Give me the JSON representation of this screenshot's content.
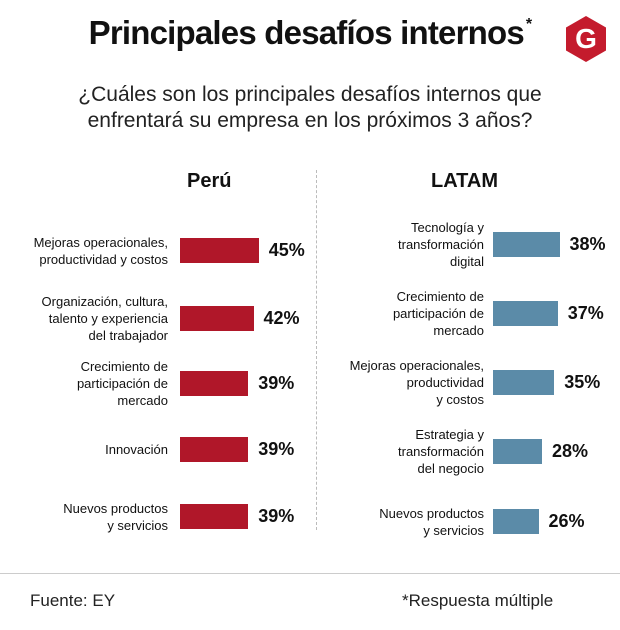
{
  "title": "Principales desafíos internos",
  "title_mark": "*",
  "logo_letter": "G",
  "subtitle_line1": "¿Cuáles son los principales desafíos internos que",
  "subtitle_line2": "enfrentará su empresa en los próximos 3 años?",
  "colors": {
    "peru": "#b01729",
    "latam": "#5b8ba8",
    "logo": "#c41b2d"
  },
  "chart_data": [
    {
      "type": "bar",
      "orientation": "horizontal",
      "title": "Perú",
      "unit": "%",
      "categories": [
        "Mejoras operacionales,\nproductividad y costos",
        "Organización, cultura,\ntalento y experiencia\ndel trabajador",
        "Crecimiento de\nparticipación de\nmercado",
        "Innovación",
        "Nuevos productos\ny servicios"
      ],
      "values": [
        45,
        42,
        39,
        39,
        39
      ],
      "labels": [
        "45%",
        "42%",
        "39%",
        "39%",
        "39%"
      ]
    },
    {
      "type": "bar",
      "orientation": "horizontal",
      "title": "LATAM",
      "unit": "%",
      "categories": [
        "Tecnología y\ntransformación\ndigital",
        "Crecimiento de\nparticipación de\nmercado",
        "Mejoras operacionales,\nproductividad\ny costos",
        "Estrategia y\ntransformación\ndel negocio",
        "Nuevos productos\ny servicios"
      ],
      "values": [
        38,
        37,
        35,
        28,
        26
      ],
      "labels": [
        "38%",
        "37%",
        "35%",
        "28%",
        "26%"
      ]
    }
  ],
  "footer": {
    "source": "Fuente: EY",
    "note": "*Respuesta múltiple"
  }
}
